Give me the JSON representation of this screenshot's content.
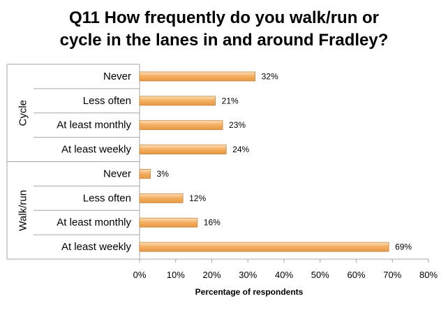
{
  "chart_data": {
    "type": "bar",
    "orientation": "horizontal",
    "title_lines": [
      "Q11 How frequently do you walk/run or",
      "cycle in the lanes in and around Fradley?"
    ],
    "groups": [
      {
        "name": "Cycle",
        "categories": [
          "Never",
          "Less often",
          "At least monthly",
          "At least weekly"
        ],
        "values": [
          32,
          21,
          23,
          24
        ]
      },
      {
        "name": "Walk/run",
        "categories": [
          "Never",
          "Less often",
          "At least monthly",
          "At least weekly"
        ],
        "values": [
          3,
          12,
          16,
          69
        ]
      }
    ],
    "value_suffix": "%",
    "xlabel": "Percentage of respondents",
    "xlim": [
      0,
      80
    ],
    "x_ticks": [
      "0%",
      "10%",
      "20%",
      "30%",
      "40%",
      "50%",
      "60%",
      "70%",
      "80%"
    ],
    "grid": false,
    "bar_color": "#f6b062",
    "bar_border_color": "#c8813a"
  }
}
